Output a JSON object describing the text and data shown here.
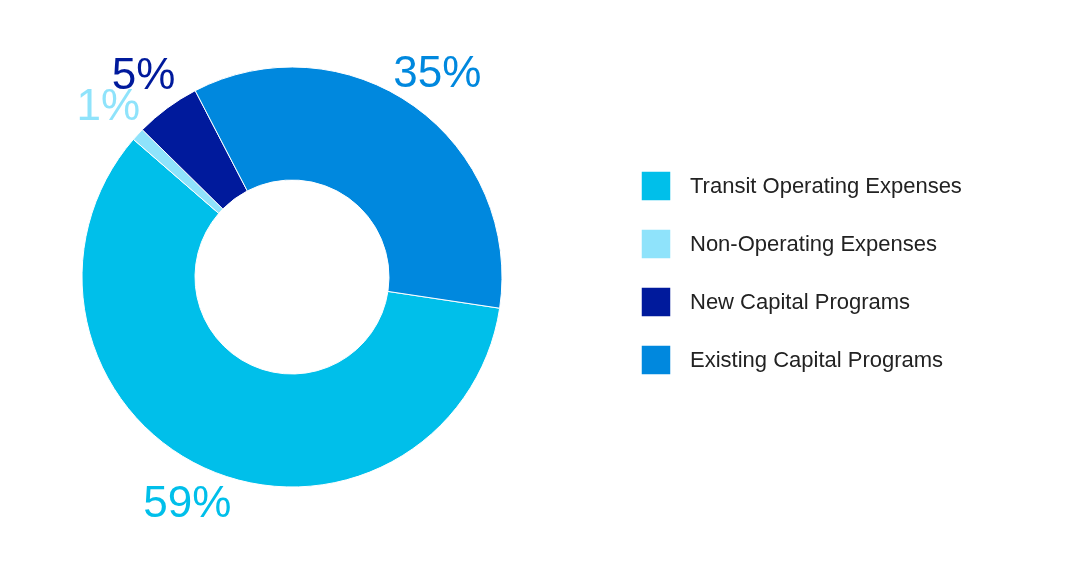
{
  "chart_data": {
    "type": "donut",
    "categories": [
      "Transit Operating Expenses",
      "Non-Operating Expenses",
      "New Capital Programs",
      "Existing Capital Programs"
    ],
    "values": [
      59,
      1,
      5,
      35
    ],
    "colors": [
      "#00bfea",
      "#8fe3fb",
      "#001a9c",
      "#0088de"
    ],
    "value_labels": [
      "59%",
      "1%",
      "5%",
      "35%"
    ],
    "legend": "right"
  }
}
